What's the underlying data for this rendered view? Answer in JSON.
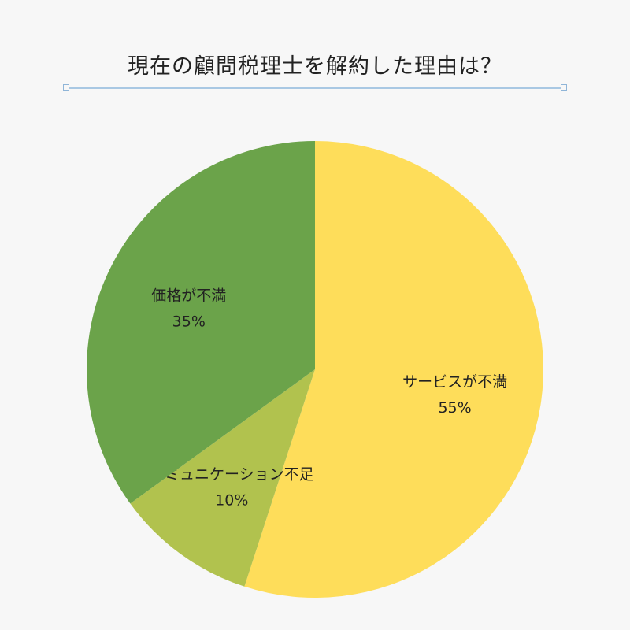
{
  "title": "現在の顧問税理士を解約した理由は？",
  "chart_data": {
    "type": "pie",
    "title": "現在の顧問税理士を解約した理由は？",
    "start_angle_deg": 0,
    "direction": "clockwise",
    "slices": [
      {
        "label": "サービスが不満",
        "value": 55,
        "value_label": "55%",
        "color": "#fedd5a"
      },
      {
        "label": "コミュニケーション不足",
        "value": 10,
        "value_label": "10%",
        "color": "#b1c24e"
      },
      {
        "label": "価格が不満",
        "value": 35,
        "value_label": "35%",
        "color": "#6ba34a"
      }
    ]
  }
}
